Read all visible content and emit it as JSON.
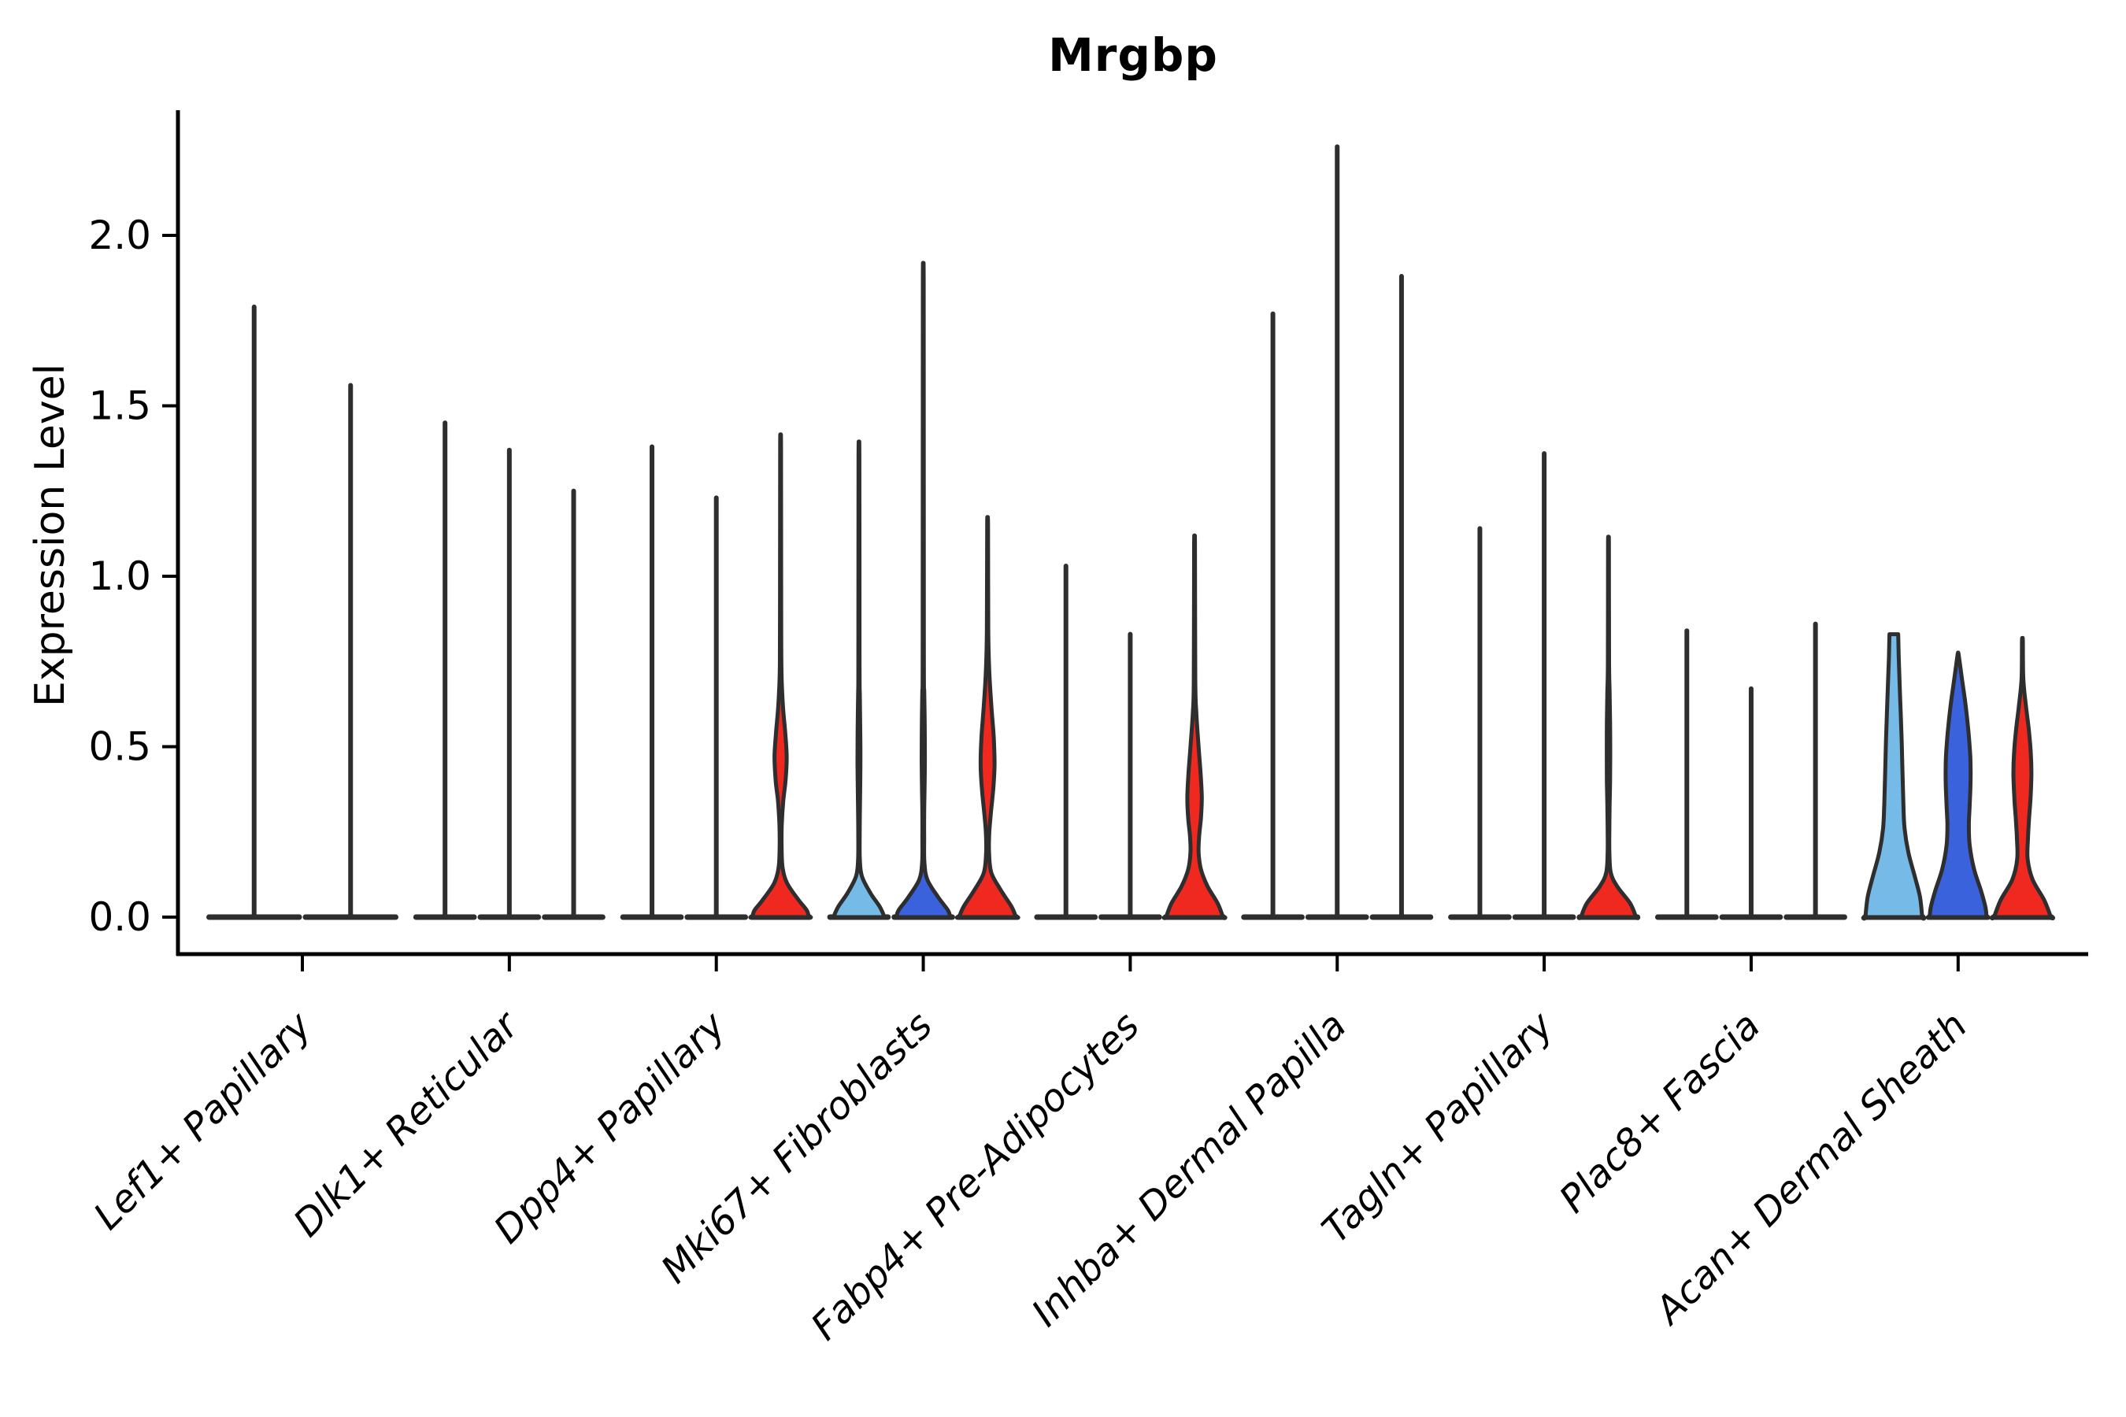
{
  "chart_data": {
    "type": "violin",
    "title": "Mrgbp",
    "ylabel": "Expression Level",
    "xlabel": "",
    "grid": false,
    "legend": "none",
    "ylim": [
      -0.11,
      2.37
    ],
    "yticks": [
      0.0,
      0.5,
      1.0,
      1.5,
      2.0
    ],
    "ytick_labels": [
      "0.0",
      "0.5",
      "1.0",
      "1.5",
      "2.0"
    ],
    "colors": {
      "lightblue": "#76BAE8",
      "darkblue": "#3A62DD",
      "red": "#EF2820",
      "edge": "#2e2e2e",
      "axis": "#000000"
    },
    "note": "Stacked violin plot of Mrgbp expression per fibroblast subtype; each group holds up to 3 condition violins (lightblue, darkblue, red). 'max' is the top expression value of each violin spike; 'profile' pairs are [expression_value, width_fraction_of_violin_half_width] describing the KDE outline.",
    "groups": [
      {
        "label": "Lef1+ Papillary",
        "violins": [
          {
            "kind": "spike",
            "max": 1.79
          },
          {
            "kind": "spike",
            "max": 1.56
          }
        ]
      },
      {
        "label": "Dlk1+ Reticular",
        "violins": [
          {
            "kind": "spike",
            "max": 1.45
          },
          {
            "kind": "spike",
            "max": 1.37
          },
          {
            "kind": "spike",
            "max": 1.25
          }
        ]
      },
      {
        "label": "Dpp4+ Papillary",
        "violins": [
          {
            "kind": "spike",
            "max": 1.38
          },
          {
            "kind": "spike",
            "max": 1.23
          },
          {
            "kind": "shape",
            "color": "red",
            "max": 1.38,
            "profile": [
              [
                1.38,
                0.015
              ],
              [
                0.9,
                0.02
              ],
              [
                0.72,
                0.03
              ],
              [
                0.62,
                0.08
              ],
              [
                0.54,
                0.16
              ],
              [
                0.47,
                0.21
              ],
              [
                0.4,
                0.17
              ],
              [
                0.34,
                0.09
              ],
              [
                0.27,
                0.04
              ],
              [
                0.2,
                0.035
              ],
              [
                0.145,
                0.07
              ],
              [
                0.1,
                0.22
              ],
              [
                0.05,
                0.62
              ],
              [
                0.02,
                0.9
              ],
              [
                0.0,
                0.97
              ]
            ]
          }
        ]
      },
      {
        "label": "Mki67+ Fibroblasts",
        "violins": [
          {
            "kind": "shape",
            "color": "lightblue",
            "max": 1.35,
            "profile": [
              [
                1.35,
                0.015
              ],
              [
                0.75,
                0.02
              ],
              [
                0.65,
                0.03
              ],
              [
                0.55,
                0.045
              ],
              [
                0.45,
                0.05
              ],
              [
                0.37,
                0.04
              ],
              [
                0.3,
                0.03
              ],
              [
                0.24,
                0.025
              ],
              [
                0.17,
                0.03
              ],
              [
                0.12,
                0.1
              ],
              [
                0.07,
                0.4
              ],
              [
                0.03,
                0.72
              ],
              [
                0.0,
                0.88
              ]
            ]
          },
          {
            "kind": "shape",
            "color": "darkblue",
            "max": 1.84,
            "profile": [
              [
                1.84,
                0.015
              ],
              [
                0.78,
                0.02
              ],
              [
                0.66,
                0.035
              ],
              [
                0.56,
                0.05
              ],
              [
                0.46,
                0.055
              ],
              [
                0.38,
                0.045
              ],
              [
                0.3,
                0.03
              ],
              [
                0.23,
                0.03
              ],
              [
                0.16,
                0.04
              ],
              [
                0.11,
                0.14
              ],
              [
                0.06,
                0.5
              ],
              [
                0.02,
                0.85
              ],
              [
                0.0,
                0.93
              ]
            ]
          },
          {
            "kind": "shape",
            "color": "red",
            "max": 1.15,
            "profile": [
              [
                1.15,
                0.015
              ],
              [
                0.84,
                0.025
              ],
              [
                0.72,
                0.06
              ],
              [
                0.62,
                0.13
              ],
              [
                0.53,
                0.21
              ],
              [
                0.45,
                0.24
              ],
              [
                0.38,
                0.2
              ],
              [
                0.31,
                0.12
              ],
              [
                0.25,
                0.06
              ],
              [
                0.19,
                0.05
              ],
              [
                0.13,
                0.13
              ],
              [
                0.08,
                0.45
              ],
              [
                0.03,
                0.83
              ],
              [
                0.0,
                0.98
              ]
            ]
          }
        ]
      },
      {
        "label": "Fabp4+ Pre-Adipocytes",
        "violins": [
          {
            "kind": "spike",
            "max": 1.03
          },
          {
            "kind": "spike",
            "max": 0.83
          },
          {
            "kind": "shape",
            "color": "red",
            "max": 1.09,
            "profile": [
              [
                1.09,
                0.015
              ],
              [
                0.7,
                0.025
              ],
              [
                0.6,
                0.06
              ],
              [
                0.5,
                0.14
              ],
              [
                0.42,
                0.21
              ],
              [
                0.35,
                0.25
              ],
              [
                0.29,
                0.22
              ],
              [
                0.24,
                0.16
              ],
              [
                0.19,
                0.14
              ],
              [
                0.14,
                0.22
              ],
              [
                0.09,
                0.45
              ],
              [
                0.04,
                0.8
              ],
              [
                0.0,
                0.98
              ]
            ]
          }
        ]
      },
      {
        "label": "Inhba+ Dermal Papilla",
        "violins": [
          {
            "kind": "spike",
            "max": 1.77
          },
          {
            "kind": "spike",
            "max": 2.26
          },
          {
            "kind": "spike",
            "max": 1.88
          }
        ]
      },
      {
        "label": "Tagln+ Papillary",
        "violins": [
          {
            "kind": "spike",
            "max": 1.14
          },
          {
            "kind": "spike",
            "max": 1.36
          },
          {
            "kind": "shape",
            "color": "red",
            "max": 1.09,
            "profile": [
              [
                1.09,
                0.015
              ],
              [
                0.75,
                0.02
              ],
              [
                0.66,
                0.04
              ],
              [
                0.57,
                0.055
              ],
              [
                0.48,
                0.06
              ],
              [
                0.4,
                0.055
              ],
              [
                0.33,
                0.04
              ],
              [
                0.26,
                0.03
              ],
              [
                0.19,
                0.03
              ],
              [
                0.13,
                0.08
              ],
              [
                0.09,
                0.3
              ],
              [
                0.04,
                0.75
              ],
              [
                0.0,
                0.95
              ]
            ]
          }
        ]
      },
      {
        "label": "Plac8+ Fascia",
        "violins": [
          {
            "kind": "spike",
            "max": 0.84
          },
          {
            "kind": "spike",
            "max": 0.67
          },
          {
            "kind": "spike",
            "max": 0.86
          }
        ]
      },
      {
        "label": "Acan+ Dermal Sheath",
        "violins": [
          {
            "kind": "shape",
            "color": "lightblue",
            "max": 0.83,
            "profile": [
              [
                0.83,
                0.15
              ],
              [
                0.76,
                0.17
              ],
              [
                0.64,
                0.22
              ],
              [
                0.52,
                0.27
              ],
              [
                0.42,
                0.3
              ],
              [
                0.33,
                0.33
              ],
              [
                0.26,
                0.37
              ],
              [
                0.19,
                0.5
              ],
              [
                0.12,
                0.72
              ],
              [
                0.06,
                0.9
              ],
              [
                0.0,
                0.98
              ]
            ]
          },
          {
            "kind": "shape",
            "color": "darkblue",
            "max": 0.77,
            "profile": [
              [
                0.77,
                0.02
              ],
              [
                0.7,
                0.13
              ],
              [
                0.62,
                0.26
              ],
              [
                0.54,
                0.36
              ],
              [
                0.47,
                0.42
              ],
              [
                0.4,
                0.43
              ],
              [
                0.33,
                0.4
              ],
              [
                0.27,
                0.37
              ],
              [
                0.21,
                0.4
              ],
              [
                0.14,
                0.55
              ],
              [
                0.08,
                0.78
              ],
              [
                0.03,
                0.94
              ],
              [
                0.0,
                0.98
              ]
            ]
          },
          {
            "kind": "shape",
            "color": "red",
            "max": 0.81,
            "profile": [
              [
                0.81,
                0.015
              ],
              [
                0.7,
                0.03
              ],
              [
                0.62,
                0.12
              ],
              [
                0.55,
                0.22
              ],
              [
                0.48,
                0.29
              ],
              [
                0.42,
                0.31
              ],
              [
                0.35,
                0.28
              ],
              [
                0.29,
                0.23
              ],
              [
                0.23,
                0.19
              ],
              [
                0.17,
                0.18
              ],
              [
                0.11,
                0.35
              ],
              [
                0.05,
                0.75
              ],
              [
                0.0,
                0.98
              ]
            ]
          }
        ]
      }
    ]
  }
}
